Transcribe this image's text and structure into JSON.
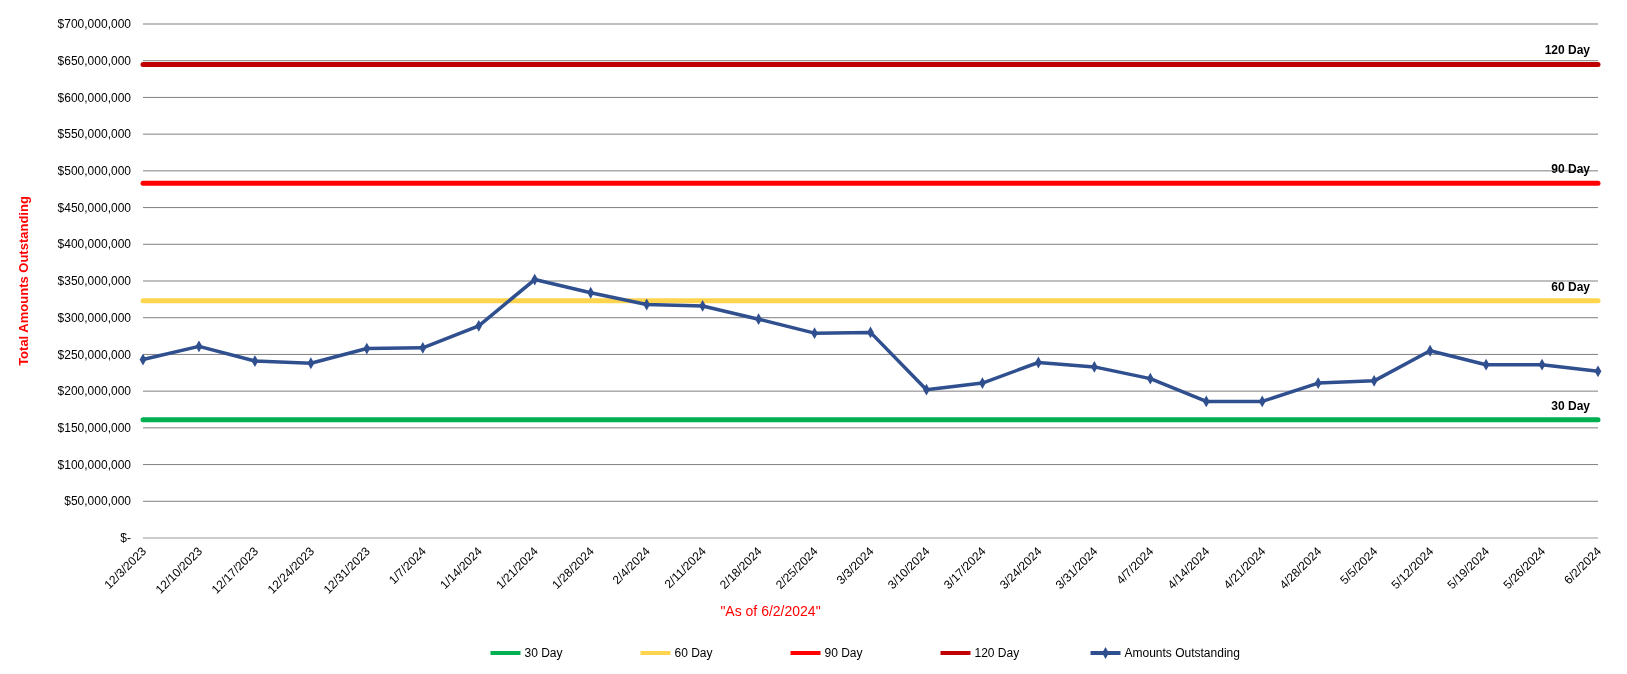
{
  "chart_data": {
    "type": "line",
    "categories": [
      "12/3/2023",
      "12/10/2023",
      "12/17/2023",
      "12/24/2023",
      "12/31/2023",
      "1/7/2024",
      "1/14/2024",
      "1/21/2024",
      "1/28/2024",
      "2/4/2024",
      "2/11/2024",
      "2/18/2024",
      "2/25/2024",
      "3/3/2024",
      "3/10/2024",
      "3/17/2024",
      "3/24/2024",
      "3/31/2024",
      "4/7/2024",
      "4/14/2024",
      "4/21/2024",
      "4/28/2024",
      "5/5/2024",
      "5/12/2024",
      "5/19/2024",
      "5/26/2024",
      "6/2/2024"
    ],
    "series": [
      {
        "name": "30 Day",
        "color": "#00b050",
        "marker": "none",
        "values": [
          161000000,
          161000000,
          161000000,
          161000000,
          161000000,
          161000000,
          161000000,
          161000000,
          161000000,
          161000000,
          161000000,
          161000000,
          161000000,
          161000000,
          161000000,
          161000000,
          161000000,
          161000000,
          161000000,
          161000000,
          161000000,
          161000000,
          161000000,
          161000000,
          161000000,
          161000000,
          161000000
        ]
      },
      {
        "name": "60 Day",
        "color": "#ffd54f",
        "marker": "none",
        "values": [
          323000000,
          323000000,
          323000000,
          323000000,
          323000000,
          323000000,
          323000000,
          323000000,
          323000000,
          323000000,
          323000000,
          323000000,
          323000000,
          323000000,
          323000000,
          323000000,
          323000000,
          323000000,
          323000000,
          323000000,
          323000000,
          323000000,
          323000000,
          323000000,
          323000000,
          323000000,
          323000000
        ]
      },
      {
        "name": "90 Day",
        "color": "#ff0000",
        "marker": "none",
        "values": [
          483000000,
          483000000,
          483000000,
          483000000,
          483000000,
          483000000,
          483000000,
          483000000,
          483000000,
          483000000,
          483000000,
          483000000,
          483000000,
          483000000,
          483000000,
          483000000,
          483000000,
          483000000,
          483000000,
          483000000,
          483000000,
          483000000,
          483000000,
          483000000,
          483000000,
          483000000,
          483000000
        ]
      },
      {
        "name": "120 Day",
        "color": "#c00000",
        "marker": "none",
        "values": [
          645000000,
          645000000,
          645000000,
          645000000,
          645000000,
          645000000,
          645000000,
          645000000,
          645000000,
          645000000,
          645000000,
          645000000,
          645000000,
          645000000,
          645000000,
          645000000,
          645000000,
          645000000,
          645000000,
          645000000,
          645000000,
          645000000,
          645000000,
          645000000,
          645000000,
          645000000,
          645000000
        ]
      },
      {
        "name": "Amounts Outstanding",
        "color": "#2f4f8f",
        "marker": "diamond",
        "values": [
          243000000,
          261000000,
          241000000,
          238000000,
          258000000,
          259000000,
          289000000,
          352000000,
          334000000,
          318000000,
          316000000,
          298000000,
          279000000,
          280000000,
          202000000,
          211000000,
          239000000,
          233000000,
          217000000,
          186000000,
          186000000,
          211000000,
          214000000,
          255000000,
          236000000,
          236000000,
          227000000
        ]
      }
    ],
    "ylabel": "Total Amounts Outstanding",
    "xlabel": "\"As of 6/2/2024\"",
    "ylim": [
      0,
      700000000
    ],
    "yticks": [
      {
        "value": 0,
        "label": "$-"
      },
      {
        "value": 50000000,
        "label": "$50,000,000"
      },
      {
        "value": 100000000,
        "label": "$100,000,000"
      },
      {
        "value": 150000000,
        "label": "$150,000,000"
      },
      {
        "value": 200000000,
        "label": "$200,000,000"
      },
      {
        "value": 250000000,
        "label": "$250,000,000"
      },
      {
        "value": 300000000,
        "label": "$300,000,000"
      },
      {
        "value": 350000000,
        "label": "$350,000,000"
      },
      {
        "value": 400000000,
        "label": "$400,000,000"
      },
      {
        "value": 450000000,
        "label": "$450,000,000"
      },
      {
        "value": 500000000,
        "label": "$500,000,000"
      },
      {
        "value": 550000000,
        "label": "$550,000,000"
      },
      {
        "value": 600000000,
        "label": "$600,000,000"
      },
      {
        "value": 650000000,
        "label": "$650,000,000"
      },
      {
        "value": 700000000,
        "label": "$700,000,000"
      }
    ],
    "grid": "y",
    "legend": "bottom"
  }
}
